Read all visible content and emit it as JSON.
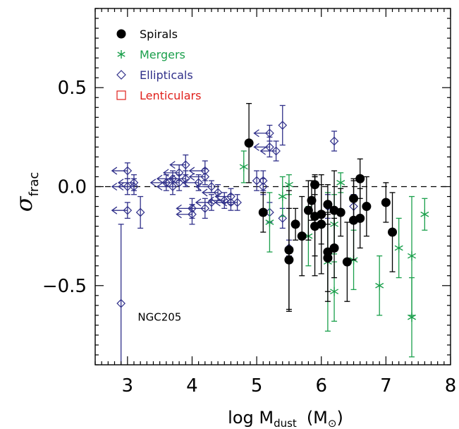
{
  "chart_data": {
    "type": "scatter",
    "xlabel": "log M",
    "xlabel_sub": "dust",
    "xlabel_unit_open": "(M",
    "xlabel_unit_sub": "⊙",
    "xlabel_unit_close": ")",
    "ylabel": "σ",
    "ylabel_sub": "frac",
    "xlim": [
      2.5,
      8.0
    ],
    "ylim": [
      -0.9,
      0.9
    ],
    "xticks": [
      3,
      4,
      5,
      6,
      7,
      8
    ],
    "yticks": [
      -0.5,
      0.0,
      0.5
    ],
    "ytick_labels": [
      "−0.5",
      "0.0",
      "0.5"
    ],
    "reference_line_y": 0.0,
    "legend": [
      {
        "label": "Spirals",
        "marker": "filled-circle",
        "color": "#000000"
      },
      {
        "label": "Mergers",
        "marker": "asterisk",
        "color": "#1a9f4b"
      },
      {
        "label": "Ellipticals",
        "marker": "diamond",
        "color": "#30308a"
      },
      {
        "label": "Lenticulars",
        "marker": "square",
        "color": "#e0201b"
      }
    ],
    "annotations": [
      {
        "text": "NGC205",
        "x": 3.05,
        "y": -0.66
      }
    ],
    "series": [
      {
        "name": "Spirals",
        "marker": "filled-circle",
        "color": "#000000",
        "points": [
          {
            "x": 4.88,
            "y": 0.22,
            "elo": 0.2,
            "ehi": 0.2
          },
          {
            "x": 5.1,
            "y": -0.13,
            "elo": 0.1,
            "ehi": 0.1
          },
          {
            "x": 5.5,
            "y": -0.32,
            "elo": 0.3,
            "ehi": 0.3
          },
          {
            "x": 5.5,
            "y": -0.37,
            "elo": 0.26,
            "ehi": 0.26
          },
          {
            "x": 5.6,
            "y": -0.19,
            "elo": 0.08,
            "ehi": 0.08
          },
          {
            "x": 5.7,
            "y": -0.25,
            "elo": 0.2,
            "ehi": 0.2
          },
          {
            "x": 5.8,
            "y": -0.12,
            "elo": 0.15,
            "ehi": 0.15
          },
          {
            "x": 5.85,
            "y": -0.07,
            "elo": 0.1,
            "ehi": 0.1
          },
          {
            "x": 5.9,
            "y": 0.01,
            "elo": 0.05,
            "ehi": 0.05
          },
          {
            "x": 5.9,
            "y": -0.15,
            "elo": 0.2,
            "ehi": 0.2
          },
          {
            "x": 5.9,
            "y": -0.2,
            "elo": 0.25,
            "ehi": 0.25
          },
          {
            "x": 6.0,
            "y": -0.19,
            "elo": 0.25,
            "ehi": 0.25
          },
          {
            "x": 6.0,
            "y": -0.14,
            "elo": 0.15,
            "ehi": 0.15
          },
          {
            "x": 6.1,
            "y": -0.09,
            "elo": 0.1,
            "ehi": 0.1
          },
          {
            "x": 6.1,
            "y": -0.33,
            "elo": 0.2,
            "ehi": 0.2
          },
          {
            "x": 6.1,
            "y": -0.36,
            "elo": 0.22,
            "ehi": 0.22
          },
          {
            "x": 6.2,
            "y": -0.12,
            "elo": 0.2,
            "ehi": 0.2
          },
          {
            "x": 6.2,
            "y": -0.31,
            "elo": 0.15,
            "ehi": 0.15
          },
          {
            "x": 6.3,
            "y": -0.13,
            "elo": 0.12,
            "ehi": 0.12
          },
          {
            "x": 6.4,
            "y": -0.38,
            "elo": 0.2,
            "ehi": 0.2
          },
          {
            "x": 6.5,
            "y": -0.06,
            "elo": 0.1,
            "ehi": 0.1
          },
          {
            "x": 6.5,
            "y": -0.17,
            "elo": 0.2,
            "ehi": 0.2
          },
          {
            "x": 6.6,
            "y": 0.04,
            "elo": 0.1,
            "ehi": 0.1
          },
          {
            "x": 6.6,
            "y": -0.16,
            "elo": 0.15,
            "ehi": 0.15
          },
          {
            "x": 6.7,
            "y": -0.1,
            "elo": 0.15,
            "ehi": 0.15
          },
          {
            "x": 7.0,
            "y": -0.08,
            "elo": 0.1,
            "ehi": 0.1
          },
          {
            "x": 7.1,
            "y": -0.23,
            "elo": 0.2,
            "ehi": 0.2
          }
        ]
      },
      {
        "name": "Mergers",
        "marker": "asterisk",
        "color": "#1a9f4b",
        "points": [
          {
            "x": 4.8,
            "y": 0.1,
            "elo": 0.08,
            "ehi": 0.08
          },
          {
            "x": 5.2,
            "y": -0.18,
            "elo": 0.15,
            "ehi": 0.15
          },
          {
            "x": 5.4,
            "y": -0.05,
            "elo": 0.1,
            "ehi": 0.1
          },
          {
            "x": 5.5,
            "y": 0.01,
            "elo": 0.05,
            "ehi": 0.05
          },
          {
            "x": 5.8,
            "y": -0.25,
            "elo": 0.15,
            "ehi": 0.15
          },
          {
            "x": 6.1,
            "y": -0.38,
            "elo": 0.35,
            "ehi": 0.35
          },
          {
            "x": 6.2,
            "y": -0.19,
            "elo": 0.15,
            "ehi": 0.15
          },
          {
            "x": 6.2,
            "y": -0.53,
            "elo": 0.15,
            "ehi": 0.15
          },
          {
            "x": 6.3,
            "y": 0.02,
            "elo": 0.05,
            "ehi": 0.05
          },
          {
            "x": 6.5,
            "y": -0.37,
            "elo": 0.15,
            "ehi": 0.15
          },
          {
            "x": 6.9,
            "y": -0.5,
            "elo": 0.15,
            "ehi": 0.15
          },
          {
            "x": 7.2,
            "y": -0.31,
            "elo": 0.15,
            "ehi": 0.15
          },
          {
            "x": 7.4,
            "y": -0.35,
            "elo": 0.3,
            "ehi": 0.3
          },
          {
            "x": 7.4,
            "y": -0.66,
            "elo": 0.2,
            "ehi": 0.2
          },
          {
            "x": 7.6,
            "y": -0.14,
            "elo": 0.08,
            "ehi": 0.08
          }
        ]
      },
      {
        "name": "Ellipticals",
        "marker": "diamond",
        "color": "#30308a",
        "points": [
          {
            "x": 2.9,
            "y": -0.59,
            "elo": 0.4,
            "ehi": 0.4
          },
          {
            "x": 3.0,
            "y": 0.08,
            "elo": 0.04,
            "ehi": 0.04,
            "upper": true
          },
          {
            "x": 3.0,
            "y": 0.0,
            "elo": 0.04,
            "ehi": 0.04,
            "upper": true
          },
          {
            "x": 3.0,
            "y": -0.12,
            "elo": 0.04,
            "ehi": 0.04,
            "upper": true
          },
          {
            "x": 3.1,
            "y": 0.02,
            "elo": 0.04,
            "ehi": 0.04,
            "upper": true
          },
          {
            "x": 3.1,
            "y": 0.0,
            "elo": 0.04,
            "ehi": 0.04,
            "upper": true
          },
          {
            "x": 3.2,
            "y": -0.13,
            "elo": 0.08,
            "ehi": 0.08
          },
          {
            "x": 3.6,
            "y": 0.02,
            "elo": 0.04,
            "ehi": 0.04,
            "upper": true
          },
          {
            "x": 3.7,
            "y": 0.0,
            "elo": 0.04,
            "ehi": 0.04,
            "upper": true
          },
          {
            "x": 3.7,
            "y": 0.04,
            "elo": 0.04,
            "ehi": 0.04,
            "upper": true
          },
          {
            "x": 3.8,
            "y": 0.07,
            "elo": 0.04,
            "ehi": 0.04,
            "upper": true
          },
          {
            "x": 3.8,
            "y": 0.02,
            "elo": 0.04,
            "ehi": 0.04,
            "upper": true
          },
          {
            "x": 3.9,
            "y": 0.11,
            "elo": 0.05,
            "ehi": 0.05,
            "upper": true
          },
          {
            "x": 3.9,
            "y": 0.04,
            "elo": 0.04,
            "ehi": 0.04,
            "upper": true
          },
          {
            "x": 4.0,
            "y": -0.11,
            "elo": 0.05,
            "ehi": 0.05,
            "upper": true
          },
          {
            "x": 4.0,
            "y": -0.14,
            "elo": 0.05,
            "ehi": 0.05,
            "upper": true
          },
          {
            "x": 4.1,
            "y": 0.02,
            "elo": 0.04,
            "ehi": 0.04,
            "upper": true
          },
          {
            "x": 4.2,
            "y": 0.08,
            "elo": 0.05,
            "ehi": 0.05,
            "upper": true
          },
          {
            "x": 4.2,
            "y": 0.05,
            "elo": 0.04,
            "ehi": 0.04,
            "upper": true
          },
          {
            "x": 4.2,
            "y": -0.11,
            "elo": 0.05,
            "ehi": 0.05,
            "upper": true
          },
          {
            "x": 4.3,
            "y": 0.0,
            "elo": 0.03,
            "ehi": 0.03,
            "upper": true
          },
          {
            "x": 4.3,
            "y": -0.08,
            "elo": 0.04,
            "ehi": 0.04,
            "upper": true
          },
          {
            "x": 4.4,
            "y": -0.03,
            "elo": 0.04,
            "ehi": 0.04,
            "upper": true
          },
          {
            "x": 4.5,
            "y": -0.07,
            "elo": 0.04,
            "ehi": 0.04,
            "upper": true
          },
          {
            "x": 4.6,
            "y": -0.05,
            "elo": 0.04,
            "ehi": 0.04,
            "upper": true
          },
          {
            "x": 4.6,
            "y": -0.08,
            "elo": 0.04,
            "ehi": 0.04,
            "upper": true
          },
          {
            "x": 4.7,
            "y": -0.08,
            "elo": 0.04,
            "ehi": 0.04,
            "upper": true
          },
          {
            "x": 5.0,
            "y": 0.03,
            "elo": 0.05,
            "ehi": 0.05
          },
          {
            "x": 5.1,
            "y": 0.03,
            "elo": 0.05,
            "ehi": 0.05
          },
          {
            "x": 5.1,
            "y": -0.0,
            "elo": 0.04,
            "ehi": 0.04
          },
          {
            "x": 5.2,
            "y": 0.27,
            "elo": 0.04,
            "ehi": 0.04,
            "upper": true
          },
          {
            "x": 5.2,
            "y": 0.2,
            "elo": 0.05,
            "ehi": 0.05,
            "upper": true
          },
          {
            "x": 5.2,
            "y": -0.13,
            "elo": 0.05,
            "ehi": 0.05
          },
          {
            "x": 5.3,
            "y": 0.18,
            "elo": 0.05,
            "ehi": 0.05,
            "upper": true
          },
          {
            "x": 5.4,
            "y": 0.31,
            "elo": 0.1,
            "ehi": 0.1
          },
          {
            "x": 5.4,
            "y": -0.16,
            "elo": 0.05,
            "ehi": 0.05
          },
          {
            "x": 5.5,
            "y": -0.31,
            "elo": 0.04,
            "ehi": 0.04
          },
          {
            "x": 6.2,
            "y": 0.23,
            "elo": 0.05,
            "ehi": 0.05
          },
          {
            "x": 6.1,
            "y": -0.1,
            "elo": 0.06,
            "ehi": 0.06
          },
          {
            "x": 6.5,
            "y": -0.1,
            "elo": 0.06,
            "ehi": 0.06
          }
        ]
      },
      {
        "name": "Lenticulars",
        "marker": "square",
        "color": "#e0201b",
        "points": []
      }
    ]
  }
}
